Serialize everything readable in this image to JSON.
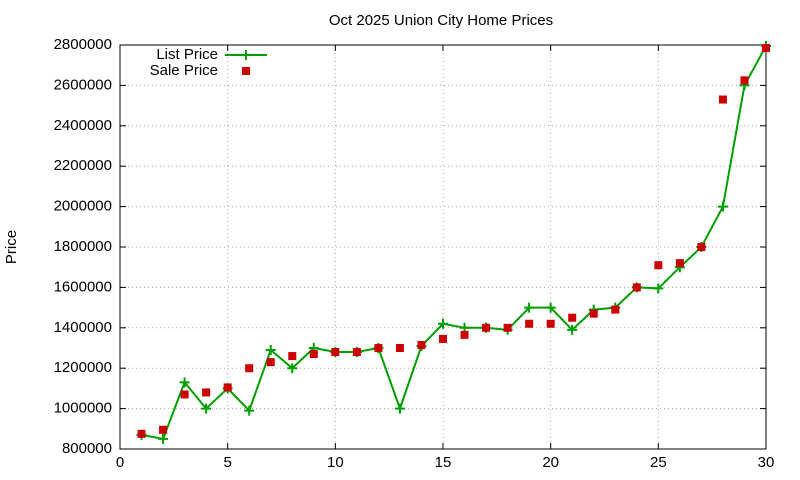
{
  "chart_data": {
    "type": "line",
    "title": "Oct 2025 Union City Home Prices",
    "y_label": "Price",
    "x": [
      1,
      2,
      3,
      4,
      5,
      6,
      7,
      8,
      9,
      10,
      11,
      12,
      13,
      14,
      15,
      16,
      17,
      18,
      19,
      20,
      21,
      22,
      23,
      24,
      25,
      26,
      27,
      28,
      29,
      30
    ],
    "series": [
      {
        "name": "List Price",
        "color": "#009e00",
        "style": "linespoints",
        "values": [
          870000,
          850000,
          1130000,
          1000000,
          1100000,
          990000,
          1290000,
          1200000,
          1300000,
          1280000,
          1280000,
          1300000,
          1000000,
          1310000,
          1420000,
          1400000,
          1400000,
          1390000,
          1500000,
          1500000,
          1390000,
          1490000,
          1500000,
          1600000,
          1595000,
          1700000,
          1800000,
          2000000,
          2600000,
          2795000
        ]
      },
      {
        "name": "Sale Price",
        "color": "#cc0000",
        "style": "points",
        "values": [
          875000,
          895000,
          1070000,
          1080000,
          1105000,
          1200000,
          1230000,
          1260000,
          1270000,
          1280000,
          1280000,
          1300000,
          1300000,
          1315000,
          1345000,
          1365000,
          1400000,
          1400000,
          1420000,
          1420000,
          1450000,
          1470000,
          1490000,
          1600000,
          1710000,
          1720000,
          1800000,
          2530000,
          2625000,
          2785000
        ]
      }
    ],
    "xlim": [
      0,
      30
    ],
    "xticks": [
      0,
      5,
      10,
      15,
      20,
      25,
      30
    ],
    "ylim": [
      800000,
      2800000
    ],
    "yticks": [
      800000,
      1000000,
      1200000,
      1400000,
      1600000,
      1800000,
      2000000,
      2200000,
      2400000,
      2600000,
      2800000
    ],
    "grid": true,
    "legend": "top-left"
  }
}
